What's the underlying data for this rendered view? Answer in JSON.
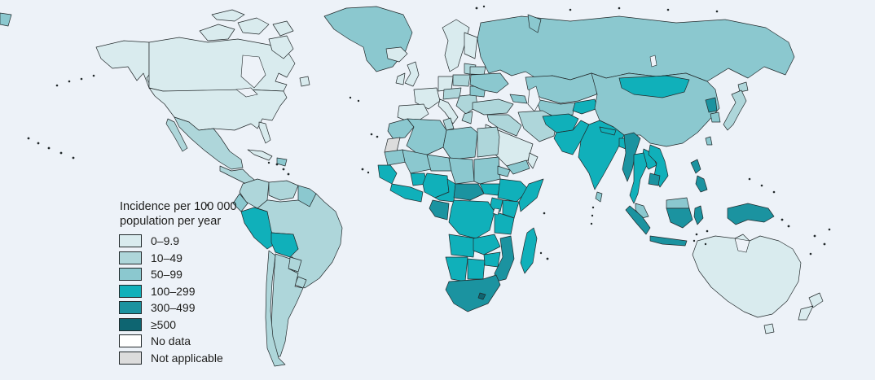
{
  "figure": {
    "type": "choropleth-world-map",
    "subject": "Estimated incidence choropleth world map"
  },
  "legend": {
    "title_line1": "Incidence per 100 000",
    "title_line2": "population per year",
    "items": [
      {
        "key": "cat1",
        "label": "0–9.9",
        "color": "#d9ebee"
      },
      {
        "key": "cat2",
        "label": "10–49",
        "color": "#aed6da"
      },
      {
        "key": "cat3",
        "label": "50–99",
        "color": "#8bc8cf"
      },
      {
        "key": "cat4",
        "label": "100–299",
        "color": "#10b0ba"
      },
      {
        "key": "cat5",
        "label": "300–499",
        "color": "#1b93a0"
      },
      {
        "key": "cat6",
        "label": "≥500",
        "color": "#0e6571"
      },
      {
        "key": "nodata",
        "label": "No data",
        "color": "#ffffff"
      },
      {
        "key": "na",
        "label": "Not applicable",
        "color": "#dcdcdc"
      }
    ]
  },
  "map": {
    "ocean_color": "#edf2f8",
    "border_color": "#22292b",
    "island_dot_color": "#22292b",
    "regions": {
      "chukotka-sliver": "cat3",
      "alaska": "cat1",
      "alaska-panhandle": "cat1",
      "canada": "cat1",
      "arctic-island-1": "cat1",
      "arctic-island-2": "cat1",
      "arctic-island-3": "cat1",
      "arctic-island-4": "cat1",
      "baffin": "cat1",
      "newfoundland": "cat1",
      "greenland": "cat3",
      "iceland": "cat1",
      "usa": "cat1",
      "florida": "cat1",
      "mexico": "cat2",
      "baja": "cat2",
      "central-america": "cat2",
      "cuba": "cat1",
      "hispaniola": "cat3",
      "colombia": "cat2",
      "venezuela": "cat2",
      "guyanas": "cat3",
      "ecuador": "cat3",
      "peru": "cat4",
      "bolivia": "cat4",
      "brazil": "cat2",
      "paraguay": "cat2",
      "uruguay": "cat2",
      "argentina": "cat2",
      "chile": "cat2",
      "uk": "cat1",
      "ireland": "cat1",
      "scandinavia": "cat1",
      "finland": "cat1",
      "baltics": "cat2",
      "poland": "cat2",
      "germany": "cat1",
      "france": "cat1",
      "iberia": "cat1",
      "italy": "cat1",
      "central-europe": "cat2",
      "balkans": "cat2",
      "greece": "cat2",
      "romania": "cat3",
      "ukraine": "cat3",
      "belarus": "cat2",
      "russia": "cat3",
      "novaya-zemlya": "cat3",
      "kazakhstan": "cat3",
      "uzbek-turkmen": "cat3",
      "kyrgyz-tajik": "cat4",
      "caucasus": "cat3",
      "turkey": "cat2",
      "syria-iraq": "cat2",
      "iran": "cat2",
      "saudi": "cat1",
      "yemen": "cat3",
      "oman": "cat1",
      "morocco": "cat3",
      "western-sahara": "na",
      "algeria": "cat3",
      "tunisia": "cat2",
      "libya": "cat3",
      "egypt": "cat2",
      "mauritania": "cat3",
      "mali": "cat3",
      "niger": "cat3",
      "chad": "cat3",
      "sudan": "cat3",
      "eritrea": "cat3",
      "senegal-guinea": "cat4",
      "west-africa-coast": "cat4",
      "burkina": "cat4",
      "nigeria": "cat4",
      "cameroon": "cat4",
      "car": "cat5",
      "south-sudan": "cat4",
      "ethiopia": "cat4",
      "somalia": "cat4",
      "kenya": "cat4",
      "uganda": "cat4",
      "drc": "cat4",
      "gabon-congo": "cat5",
      "tanzania": "cat4",
      "angola": "cat4",
      "zambia": "cat4",
      "mozambique": "cat5",
      "zimbabwe": "cat4",
      "namibia": "cat4",
      "botswana": "cat4",
      "south-africa": "cat5",
      "lesotho": "cat6",
      "madagascar": "cat4",
      "afghanistan": "cat4",
      "pakistan": "cat4",
      "india": "cat4",
      "nepal": "cat4",
      "srilanka": "cat3",
      "bangladesh": "cat4",
      "china": "cat3",
      "mongolia": "cat4",
      "north-korea": "cat5",
      "south-korea": "cat3",
      "hokkaido": "cat2",
      "japan": "cat2",
      "taiwan": "cat3",
      "myanmar": "cat5",
      "thailand": "cat4",
      "laos": "cat4",
      "vietnam": "cat4",
      "cambodia": "cat5",
      "malaysia": "cat3",
      "sumatra": "cat5",
      "java": "cat5",
      "borneo": "cat5",
      "north-borneo": "cat3",
      "sulawesi": "cat5",
      "new-guinea": "cat5",
      "philippines-luzon": "cat5",
      "philippines-mindanao": "cat5",
      "australia": "cat1",
      "tasmania": "cat1",
      "nz-north": "cat1",
      "nz-south": "cat1"
    }
  }
}
